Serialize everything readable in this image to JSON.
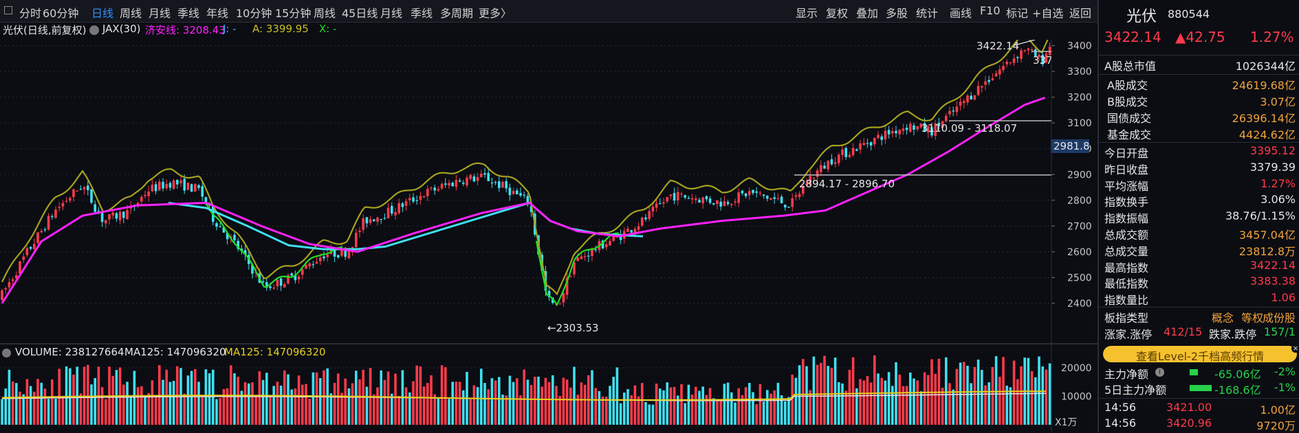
{
  "toolbar": {
    "left_items": [
      "分时",
      "60分钟",
      "日线",
      "周线",
      "月线",
      "季线",
      "年线",
      "10分钟",
      "15分钟",
      "周线",
      "45日线",
      "月线",
      "季线",
      "多周期",
      "更多〉"
    ],
    "active_index": 2,
    "right_items": [
      "显示",
      "复权",
      "叠加",
      "多股",
      "统计",
      "画线",
      "F10",
      "标记",
      "+自选",
      "返回"
    ]
  },
  "info_bar": {
    "name": "光伏(日线,前复权)",
    "indicator": "JAX(30)",
    "jax_label": "济安线: 3208.43",
    "j_label": "J: -",
    "a_label": "A: 3399.95",
    "x_label": "X: -"
  },
  "main_chart": {
    "y_ticks": [
      "3400",
      "3300",
      "3200",
      "3100",
      "3000",
      "2900",
      "2800",
      "2700",
      "2600",
      "2500",
      "2400"
    ],
    "cursor_price": "2981.8",
    "annotations": {
      "high": "3422.14",
      "low": "←2303.53",
      "range1": "3110.09 - 3118.07",
      "range2": "2894.17 - 2896.70",
      "cut": "337"
    },
    "colors": {
      "up": "#ff3b4b",
      "down": "#3fe0f0",
      "jax": "#ff22ff",
      "a_line": "#a6a21e",
      "x_line": "#22dd22"
    }
  },
  "volume_panel": {
    "label": "VOLUME: 238127664",
    "ma_white": "MA125: 147096320",
    "ma_yellow": "MA125: 147096320",
    "y_ticks": [
      "20000",
      "10000"
    ],
    "unit": "X1万"
  },
  "panel": {
    "title": "光伏",
    "code": "880544",
    "price": "3422.14",
    "change": "▲42.75",
    "change_pct": "1.27%",
    "market_cap": {
      "label": "A股总市值",
      "value": "1026344亿"
    },
    "turnover": [
      {
        "label": "A股成交",
        "value": "24619.68亿"
      },
      {
        "label": "B股成交",
        "value": "3.07亿"
      },
      {
        "label": "国债成交",
        "value": "26396.14亿"
      },
      {
        "label": "基金成交",
        "value": "4424.62亿"
      }
    ],
    "stats": [
      {
        "label": "今日开盘",
        "value": "3395.12",
        "color": "red"
      },
      {
        "label": "昨日收盘",
        "value": "3379.39",
        "color": "white"
      },
      {
        "label": "平均涨幅",
        "value": "1.27%",
        "color": "red"
      },
      {
        "label": "指数换手",
        "value": "3.06%",
        "color": "white"
      },
      {
        "label": "指数振幅",
        "value": "38.76/1.15%",
        "color": "white"
      },
      {
        "label": "总成交额",
        "value": "3457.04亿",
        "color": "orange"
      },
      {
        "label": "总成交量",
        "value": "23812.8万",
        "color": "orange"
      },
      {
        "label": "最高指数",
        "value": "3422.14",
        "color": "red"
      },
      {
        "label": "最低指数",
        "value": "3383.38",
        "color": "red"
      },
      {
        "label": "指数量比",
        "value": "1.06",
        "color": "red"
      }
    ],
    "board_type": {
      "label": "板指类型",
      "tags": [
        "概念",
        "等权",
        "成份股"
      ]
    },
    "limits": {
      "up_label": "涨家.涨停",
      "up_value": "412/15",
      "down_label": "跌家.跌停",
      "down_value": "157/1"
    },
    "level2_button": "查看Level-2千档高频行情",
    "flow": [
      {
        "label": "主力净额",
        "value": "-65.06亿",
        "pct": "-2%"
      },
      {
        "label": "5日主力净额",
        "value": "-168.6亿",
        "pct": "-1%"
      }
    ],
    "ticks": [
      {
        "time": "14:56",
        "price": "3421.00",
        "vol": "1.00亿"
      },
      {
        "time": "14:56",
        "price": "3420.96",
        "vol": "9720万"
      }
    ]
  }
}
